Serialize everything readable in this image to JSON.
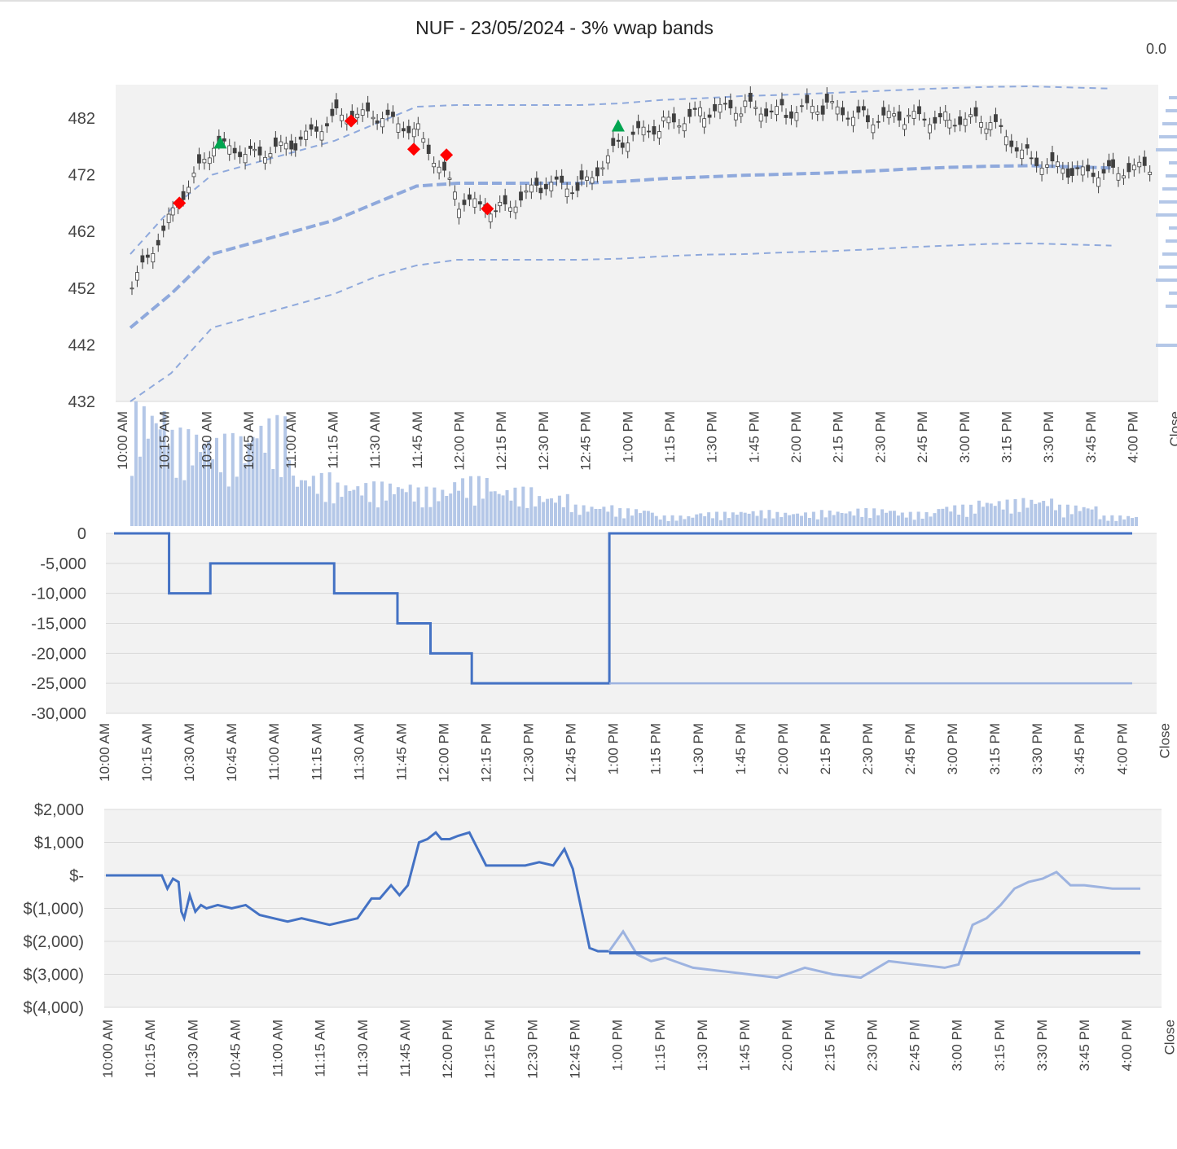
{
  "title": "NUF - 23/05/2024 - 3% vwap bands",
  "corner_value": "0.0",
  "time_labels": [
    "10:00 AM",
    "10:15 AM",
    "10:30 AM",
    "10:45 AM",
    "11:00 AM",
    "11:15 AM",
    "11:30 AM",
    "11:45 AM",
    "12:00 PM",
    "12:15 PM",
    "12:30 PM",
    "12:45 PM",
    "1:00 PM",
    "1:15 PM",
    "1:30 PM",
    "1:45 PM",
    "2:00 PM",
    "2:15 PM",
    "2:30 PM",
    "2:45 PM",
    "3:00 PM",
    "3:15 PM",
    "3:30 PM",
    "3:45 PM",
    "4:00 PM",
    "Close"
  ],
  "colors": {
    "candle": "#404040",
    "vwap": "#8fa9dc",
    "volume": "#b4c7e7",
    "position": "#4472c4",
    "position_light": "#9db3e0",
    "buy_marker": "#00a550",
    "sell_marker": "#ff0000",
    "plot_bg": "#f2f2f2",
    "grid": "#d9d9d9"
  },
  "chart_data": [
    {
      "type": "candlestick",
      "name": "price",
      "y_ticks": [
        "432",
        "442",
        "452",
        "462",
        "472",
        "482"
      ],
      "ylim": [
        432,
        490
      ],
      "series": [
        {
          "name": "price",
          "x": [
            "10:00",
            "10:15",
            "10:30",
            "10:45",
            "11:00",
            "11:15",
            "11:30",
            "11:45",
            "12:00",
            "12:15",
            "12:30",
            "12:45",
            "13:00",
            "13:15",
            "13:30",
            "13:45",
            "14:00",
            "14:15",
            "14:30",
            "14:45",
            "15:00",
            "15:15",
            "15:30",
            "15:45",
            "16:00"
          ],
          "close": [
            452,
            466,
            477,
            476,
            477,
            483,
            482,
            480,
            467,
            466,
            470,
            470,
            478,
            481,
            483,
            484,
            483,
            484,
            482,
            482,
            482,
            481,
            475,
            472,
            473
          ]
        },
        {
          "name": "vwap",
          "x": [
            "10:00",
            "10:15",
            "10:30",
            "10:45",
            "11:00",
            "11:15",
            "11:30",
            "11:45",
            "12:00",
            "12:15",
            "12:30",
            "12:45",
            "13:00",
            "13:15",
            "13:30",
            "13:45",
            "14:00",
            "14:15",
            "14:30",
            "14:45",
            "15:00",
            "15:15",
            "15:30",
            "15:45",
            "16:00"
          ],
          "values": [
            445,
            451,
            458,
            460,
            462,
            464,
            467,
            470,
            470.5,
            470.5,
            470.5,
            470.5,
            470.8,
            471.3,
            471.6,
            471.9,
            472.1,
            472.3,
            472.6,
            473,
            473.3,
            473.5,
            473.6,
            473.4,
            473.2
          ]
        },
        {
          "name": "vwap_upper",
          "x": [
            "10:00",
            "10:15",
            "10:30",
            "10:45",
            "11:00",
            "11:15",
            "11:30",
            "11:45",
            "12:00",
            "12:15",
            "12:30",
            "12:45",
            "13:00",
            "13:15",
            "13:30",
            "13:45",
            "14:00",
            "14:15",
            "14:30",
            "14:45",
            "15:00",
            "15:15",
            "15:30",
            "15:45",
            "16:00"
          ],
          "values": [
            458,
            466,
            472,
            474,
            476,
            478,
            481,
            484,
            484.3,
            484.3,
            484.3,
            484.3,
            484.6,
            485.2,
            485.5,
            485.9,
            486.1,
            486.4,
            486.7,
            487,
            487.3,
            487.5,
            487.6,
            487.4,
            487.2
          ]
        },
        {
          "name": "vwap_lower",
          "x": [
            "10:00",
            "10:15",
            "10:30",
            "10:45",
            "11:00",
            "11:15",
            "11:30",
            "11:45",
            "12:00",
            "12:15",
            "12:30",
            "12:45",
            "13:00",
            "13:15",
            "13:30",
            "13:45",
            "14:00",
            "14:15",
            "14:30",
            "14:45",
            "15:00",
            "15:15",
            "15:30",
            "15:45",
            "16:00"
          ],
          "values": [
            432,
            437,
            445,
            447,
            449,
            451,
            454,
            456,
            457,
            457,
            457,
            457,
            457.2,
            457.6,
            457.9,
            458,
            458.3,
            458.5,
            458.8,
            459.2,
            459.5,
            459.8,
            459.9,
            459.7,
            459.5
          ]
        }
      ],
      "markers": [
        {
          "type": "buy",
          "x": "10:33",
          "y": 477.5
        },
        {
          "type": "buy",
          "x": "12:59",
          "y": 480.5
        },
        {
          "type": "sell",
          "x": "10:18",
          "y": 467
        },
        {
          "type": "sell",
          "x": "11:21",
          "y": 481.5
        },
        {
          "type": "sell",
          "x": "11:44",
          "y": 476.5
        },
        {
          "type": "sell",
          "x": "11:56",
          "y": 475.5
        },
        {
          "type": "sell",
          "x": "12:11",
          "y": 466
        }
      ]
    },
    {
      "type": "bar",
      "name": "volume",
      "values": [
        70,
        55,
        52,
        62,
        30,
        25,
        25,
        22,
        28,
        22,
        18,
        12,
        10,
        6,
        8,
        9,
        8,
        9,
        10,
        8,
        12,
        15,
        16,
        12,
        6
      ]
    },
    {
      "type": "line",
      "name": "position",
      "y_ticks": [
        "0",
        "-5,000",
        "-10,000",
        "-15,000",
        "-20,000",
        "-25,000",
        "-30,000"
      ],
      "ylim": [
        -30000,
        0
      ],
      "series": [
        {
          "name": "position",
          "x": [
            "10:00",
            "10:20",
            "10:20",
            "10:35",
            "10:35",
            "11:20",
            "11:20",
            "11:43",
            "11:43",
            "11:55",
            "11:55",
            "12:10",
            "12:10",
            "13:00",
            "13:00",
            "16:10"
          ],
          "values": [
            0,
            0,
            -10000,
            -10000,
            -5000,
            -5000,
            -10000,
            -10000,
            -15000,
            -15000,
            -20000,
            -20000,
            -25000,
            -25000,
            0,
            0
          ]
        },
        {
          "name": "position_hypothetical",
          "x": [
            "13:00",
            "16:10"
          ],
          "values": [
            -25000,
            -25000
          ]
        }
      ]
    },
    {
      "type": "line",
      "name": "pnl",
      "y_ticks": [
        "$2,000",
        "$1,000",
        "$-",
        "$(1,000)",
        "$(2,000)",
        "$(3,000)",
        "$(4,000)"
      ],
      "ylim": [
        -4000,
        2000
      ],
      "series": [
        {
          "name": "pnl",
          "x": [
            "10:00",
            "10:20",
            "10:22",
            "10:24",
            "10:26",
            "10:27",
            "10:28",
            "10:30",
            "10:32",
            "10:34",
            "10:36",
            "10:40",
            "10:45",
            "10:50",
            "10:55",
            "11:00",
            "11:05",
            "11:10",
            "11:15",
            "11:20",
            "11:25",
            "11:30",
            "11:35",
            "11:38",
            "11:42",
            "11:45",
            "11:48",
            "11:52",
            "11:55",
            "11:58",
            "12:00",
            "12:03",
            "12:06",
            "12:10",
            "12:13",
            "12:16",
            "12:20",
            "12:25",
            "12:30",
            "12:35",
            "12:40",
            "12:44",
            "12:47",
            "12:50",
            "12:53",
            "12:56",
            "13:00"
          ],
          "values": [
            0,
            0,
            -400,
            -100,
            -200,
            -1100,
            -1300,
            -600,
            -1100,
            -900,
            -1000,
            -900,
            -1000,
            -900,
            -1200,
            -1300,
            -1400,
            -1300,
            -1400,
            -1500,
            -1400,
            -1300,
            -700,
            -700,
            -300,
            -600,
            -300,
            1000,
            1100,
            1300,
            1100,
            1100,
            1200,
            1300,
            800,
            300,
            300,
            300,
            300,
            400,
            300,
            800,
            200,
            -1000,
            -2200,
            -2300,
            -2300
          ]
        },
        {
          "name": "pnl_hypothetical",
          "x": [
            "13:00",
            "13:05",
            "13:10",
            "13:15",
            "13:20",
            "13:30",
            "13:40",
            "13:50",
            "14:00",
            "14:10",
            "14:20",
            "14:30",
            "14:40",
            "14:50",
            "15:00",
            "15:05",
            "15:10",
            "15:15",
            "15:20",
            "15:25",
            "15:30",
            "15:35",
            "15:40",
            "15:45",
            "15:50",
            "16:00",
            "16:10"
          ],
          "values": [
            -2300,
            -1700,
            -2400,
            -2600,
            -2500,
            -2800,
            -2900,
            -3000,
            -3100,
            -2800,
            -3000,
            -3100,
            -2600,
            -2700,
            -2800,
            -2700,
            -1500,
            -1300,
            -900,
            -400,
            -200,
            -100,
            100,
            -300,
            -300,
            -400,
            -400
          ]
        },
        {
          "name": "pnl_realized",
          "x": [
            "13:00",
            "16:10"
          ],
          "values": [
            -2350,
            -2350
          ]
        }
      ]
    }
  ]
}
